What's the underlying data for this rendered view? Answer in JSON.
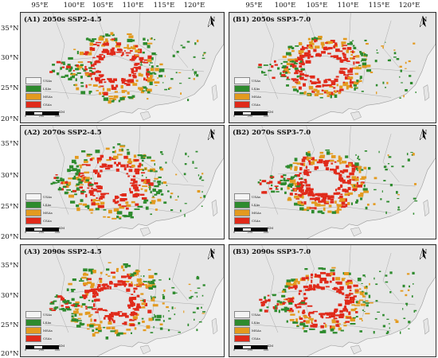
{
  "longitudes": [
    "95°E",
    "100°E",
    "105°E",
    "110°E",
    "115°E",
    "120°E"
  ],
  "latitudes": [
    "35°N",
    "30°N",
    "25°N",
    "20°N"
  ],
  "panels": [
    {
      "label": "(A1) 2050s SSP2-4.5"
    },
    {
      "label": "(B1) 2050s SSP3-7.0"
    },
    {
      "label": "(A2) 2070s SSP2-4.5"
    },
    {
      "label": "(B2) 2070s SSP3-7.0"
    },
    {
      "label": "(A3) 2090s SSP2-4.5"
    },
    {
      "label": "(B3) 2090s SSP3-7.0"
    }
  ],
  "legend": [
    {
      "label": "USAs",
      "color": "#f4f4f4"
    },
    {
      "label": "LSAs",
      "color": "#2e8b2e"
    },
    {
      "label": "MSAs",
      "color": "#e39a1f"
    },
    {
      "label": "CSAs",
      "color": "#e02a1a"
    }
  ],
  "scale": {
    "ticks": [
      "0",
      "250",
      "500"
    ],
    "unit": "KM"
  },
  "north_label": "N",
  "colors": {
    "land": "#e6e6e6",
    "border": "#9a9a9a",
    "sea": "#f7f7f7",
    "high": "#e02a1a",
    "mid": "#e39a1f",
    "low": "#2e8b2e"
  }
}
